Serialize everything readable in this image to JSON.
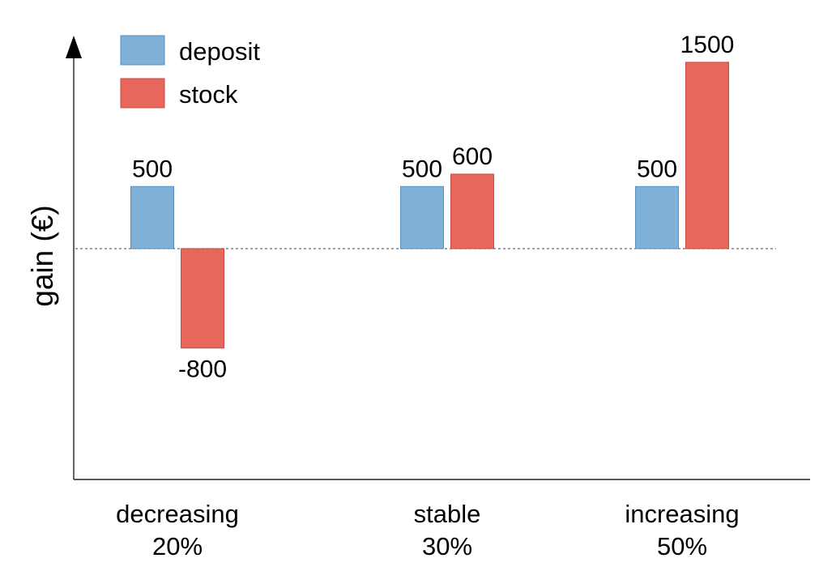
{
  "chart_data": {
    "type": "bar",
    "categories": [
      {
        "line1": "decreasing",
        "line2": "20%"
      },
      {
        "line1": "stable",
        "line2": "30%"
      },
      {
        "line1": "increasing",
        "line2": "50%"
      }
    ],
    "series": [
      {
        "name": "deposit",
        "color": "#7fb1d9",
        "values": [
          500,
          500,
          500
        ],
        "labels": [
          "500",
          "500",
          "500"
        ]
      },
      {
        "name": "stock",
        "color": "#e8675c",
        "values": [
          -800,
          600,
          1500
        ],
        "labels": [
          "-800",
          "600",
          "1500"
        ]
      }
    ],
    "xlabel": "",
    "ylabel": "gain (€)",
    "baseline": "dashed",
    "ylim": [
      -2100,
      1900
    ],
    "legend": "top-left",
    "grid": false
  }
}
